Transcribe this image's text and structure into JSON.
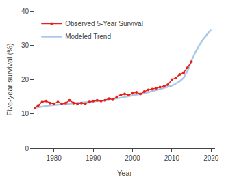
{
  "chart_data": {
    "type": "line",
    "xlabel": "Year",
    "ylabel": "Five-year survival (%)",
    "xlim": [
      1975,
      2021
    ],
    "ylim": [
      0,
      40
    ],
    "xticks": [
      1980,
      1990,
      2000,
      2010,
      2020
    ],
    "yticks": [
      0,
      10,
      20,
      30,
      40
    ],
    "grid": false,
    "legend": "upper left",
    "series": [
      {
        "name": "Modeled Trend",
        "color": "#aac8e8",
        "line_style": "solid",
        "x": [
          1975,
          1976,
          1977,
          1978,
          1979,
          1980,
          1981,
          1982,
          1983,
          1984,
          1985,
          1986,
          1987,
          1988,
          1989,
          1990,
          1991,
          1992,
          1993,
          1994,
          1995,
          1996,
          1997,
          1998,
          1999,
          2000,
          2001,
          2002,
          2003,
          2004,
          2005,
          2006,
          2007,
          2008,
          2009,
          2010,
          2011,
          2012,
          2013,
          2014,
          2015,
          2016,
          2017,
          2018,
          2019,
          2020
        ],
        "values": [
          11.8,
          12.0,
          12.2,
          12.4,
          12.5,
          12.6,
          12.7,
          12.8,
          12.9,
          13.0,
          13.1,
          13.2,
          13.3,
          13.4,
          13.5,
          13.6,
          13.7,
          13.8,
          13.9,
          14.1,
          14.3,
          14.5,
          14.7,
          14.9,
          15.1,
          15.3,
          15.5,
          15.8,
          16.0,
          16.3,
          16.6,
          16.9,
          17.2,
          17.5,
          17.8,
          18.2,
          18.8,
          19.5,
          20.5,
          22.5,
          25.5,
          28.0,
          30.0,
          31.8,
          33.2,
          34.5
        ]
      },
      {
        "name": "Observed 5-Year Survival",
        "color": "#e8211a",
        "line_style": "solid",
        "marker": "circle",
        "x": [
          1975,
          1976,
          1977,
          1978,
          1979,
          1980,
          1981,
          1982,
          1983,
          1984,
          1985,
          1986,
          1987,
          1988,
          1989,
          1990,
          1991,
          1992,
          1993,
          1994,
          1995,
          1996,
          1997,
          1998,
          1999,
          2000,
          2001,
          2002,
          2003,
          2004,
          2005,
          2006,
          2007,
          2008,
          2009,
          2010,
          2011,
          2012,
          2013,
          2014,
          2015
        ],
        "values": [
          11.7,
          12.5,
          13.5,
          13.8,
          13.2,
          13.0,
          13.5,
          13.0,
          13.2,
          14.0,
          13.2,
          13.0,
          13.2,
          13.0,
          13.5,
          13.8,
          14.0,
          13.8,
          14.0,
          14.5,
          14.2,
          15.0,
          15.5,
          15.8,
          15.5,
          16.0,
          16.3,
          15.8,
          16.5,
          17.0,
          17.2,
          17.5,
          17.8,
          18.0,
          18.5,
          20.0,
          20.5,
          21.5,
          22.0,
          23.5,
          25.2
        ]
      }
    ]
  }
}
